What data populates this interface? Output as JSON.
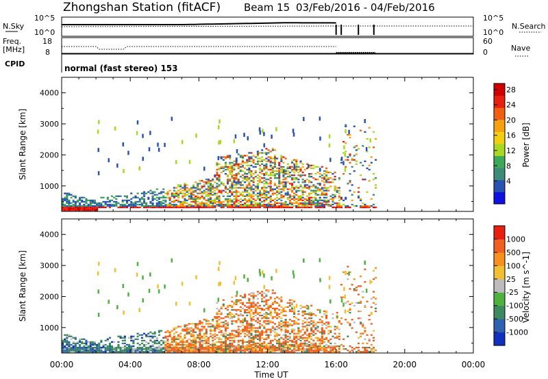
{
  "header": {
    "title": "Zhongshan Station (fitACF)",
    "beam": "Beam 15",
    "date_range": "03/Feb/2016 - 04/Feb/2016"
  },
  "top_panels": {
    "nsky_label": "N.Sky",
    "nsky_ticks": [
      "10^5",
      "10^0"
    ],
    "nsearch_label": "N.Search",
    "nsearch_ticks": [
      "10^5",
      "10^0"
    ],
    "freq_label_1": "Freq.",
    "freq_label_2": "[MHz]",
    "freq_ticks": [
      "18",
      "8"
    ],
    "nave_label": "Nave",
    "nave_ticks": [
      "60",
      "0"
    ],
    "cpid_label": "CPID",
    "cpid_text": "normal (fast stereo) 153"
  },
  "chart_data": [
    {
      "type": "heatmap",
      "quantity": "Power",
      "ylabel": "Slant Range [km]",
      "ylim": [
        180,
        4500
      ],
      "yticks": [
        "1000",
        "2000",
        "3000",
        "4000"
      ],
      "xlim_hours": [
        0,
        24
      ],
      "colorbar": {
        "label": "Power [dB]",
        "ticks": [
          "4",
          "8",
          "12",
          "16",
          "20",
          "24",
          "28"
        ],
        "colors": [
          "#1010e0",
          "#2a52b0",
          "#3d8a78",
          "#3da858",
          "#a8d820",
          "#f0d010",
          "#f8a010",
          "#f06010",
          "#e82010",
          "#d00000"
        ]
      }
    },
    {
      "type": "heatmap",
      "quantity": "Velocity",
      "ylabel": "Slant Range [km]",
      "ylim": [
        180,
        4500
      ],
      "yticks": [
        "1000",
        "2000",
        "3000",
        "4000"
      ],
      "xlim_hours": [
        0,
        24
      ],
      "colorbar": {
        "label": "Velocity [m s^-1]",
        "ticks": [
          "1000",
          "500",
          "100",
          "25",
          "-25",
          "-100",
          "-500",
          "-1000"
        ],
        "colors": [
          "#1030c0",
          "#3060b0",
          "#3d8a60",
          "#50b040",
          "#bcbcbc",
          "#f0c030",
          "#f89020",
          "#f06020",
          "#e82010"
        ]
      }
    }
  ],
  "x_axis": {
    "ticks": [
      "00:00",
      "04:00",
      "08:00",
      "12:00",
      "16:00",
      "20:00",
      "00:00"
    ],
    "label": "Time UT"
  }
}
